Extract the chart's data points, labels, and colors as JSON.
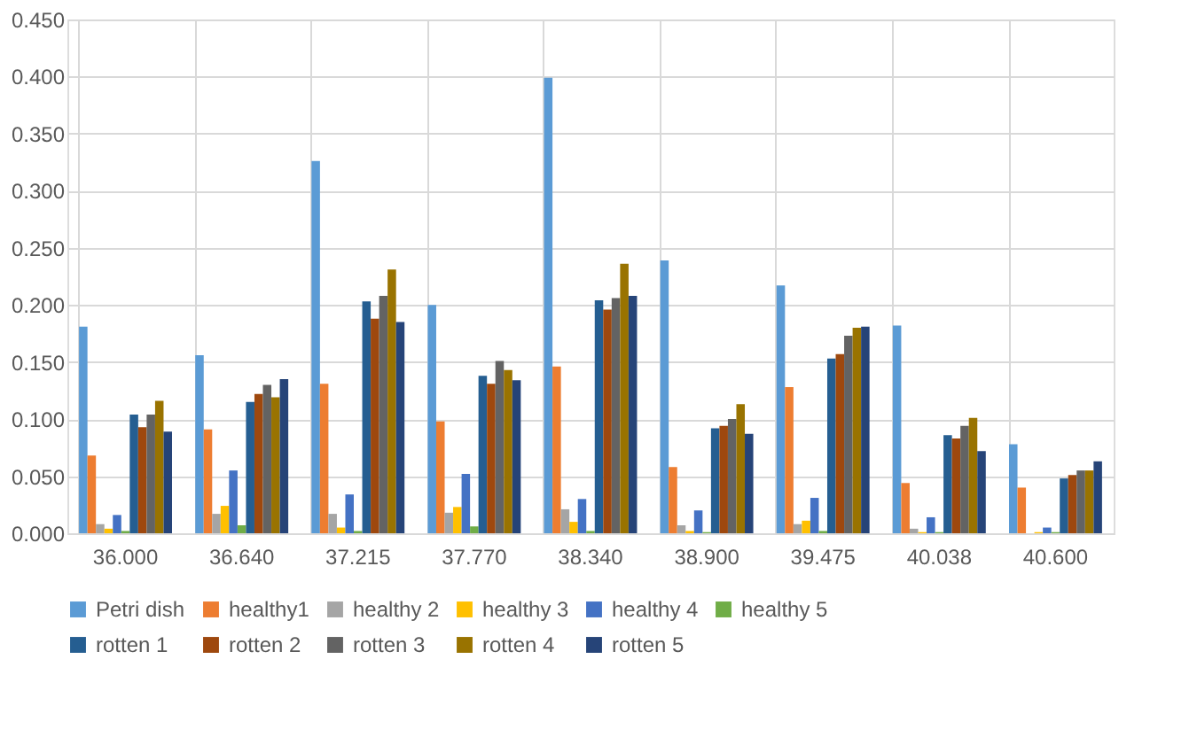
{
  "chart_data": {
    "type": "bar",
    "categories": [
      "36.000",
      "36.640",
      "37.215",
      "37.770",
      "38.340",
      "38.900",
      "39.475",
      "40.038",
      "40.600"
    ],
    "series": [
      {
        "name": "Petri dish",
        "color": "#5b9bd5",
        "values": [
          0.181,
          0.156,
          0.326,
          0.2,
          0.399,
          0.239,
          0.217,
          0.182,
          0.078
        ]
      },
      {
        "name": "healthy1",
        "color": "#ed7d31",
        "values": [
          0.068,
          0.091,
          0.131,
          0.098,
          0.146,
          0.058,
          0.128,
          0.044,
          0.04
        ]
      },
      {
        "name": "healthy 2",
        "color": "#a5a5a5",
        "values": [
          0.008,
          0.017,
          0.017,
          0.018,
          0.021,
          0.007,
          0.008,
          0.004,
          null
        ]
      },
      {
        "name": "healthy 3",
        "color": "#ffc000",
        "values": [
          0.004,
          0.024,
          0.005,
          0.023,
          0.01,
          0.002,
          0.011,
          0.001,
          0.001
        ]
      },
      {
        "name": "healthy 4",
        "color": "#4472c4",
        "values": [
          0.016,
          0.055,
          0.034,
          0.052,
          0.03,
          0.02,
          0.031,
          0.014,
          0.005
        ]
      },
      {
        "name": "healthy 5",
        "color": "#70ad47",
        "values": [
          0.002,
          0.007,
          0.002,
          0.006,
          0.002,
          0.001,
          0.002,
          0.001,
          0.001
        ]
      },
      {
        "name": "rotten 1",
        "color": "#255e91",
        "values": [
          0.104,
          0.115,
          0.203,
          0.138,
          0.204,
          0.092,
          0.153,
          0.086,
          0.048
        ]
      },
      {
        "name": "rotten 2",
        "color": "#9e480e",
        "values": [
          0.093,
          0.122,
          0.188,
          0.131,
          0.196,
          0.094,
          0.157,
          0.083,
          0.051
        ]
      },
      {
        "name": "rotten 3",
        "color": "#636363",
        "values": [
          0.104,
          0.13,
          0.208,
          0.151,
          0.206,
          0.1,
          0.173,
          0.094,
          0.055
        ]
      },
      {
        "name": "rotten 4",
        "color": "#997300",
        "values": [
          0.116,
          0.119,
          0.231,
          0.143,
          0.236,
          0.113,
          0.18,
          0.101,
          0.055
        ]
      },
      {
        "name": "rotten 5",
        "color": "#264478",
        "values": [
          0.089,
          0.135,
          0.185,
          0.134,
          0.208,
          0.087,
          0.181,
          0.072,
          0.063
        ]
      }
    ],
    "ylim": [
      0,
      0.45
    ],
    "yticks": [
      {
        "value": 0,
        "label": "0.000"
      },
      {
        "value": 0.05,
        "label": "0.050"
      },
      {
        "value": 0.1,
        "label": "0.100"
      },
      {
        "value": 0.15,
        "label": "0.150"
      },
      {
        "value": 0.2,
        "label": "0.200"
      },
      {
        "value": 0.25,
        "label": "0.250"
      },
      {
        "value": 0.3,
        "label": "0.300"
      },
      {
        "value": 0.35,
        "label": "0.350"
      },
      {
        "value": 0.4,
        "label": "0.400"
      },
      {
        "value": 0.45,
        "label": "0.450"
      }
    ],
    "grid": true,
    "legend": "bottom"
  }
}
